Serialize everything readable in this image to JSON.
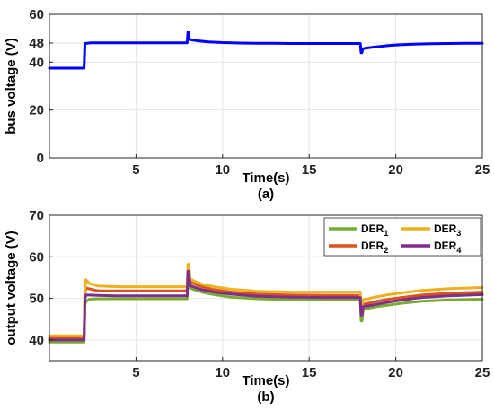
{
  "chart_data": [
    {
      "type": "line",
      "panel_label": "(a)",
      "xlabel": "Time(s)",
      "ylabel": "bus voltage (V)",
      "xlim": [
        0,
        25
      ],
      "ylim": [
        0,
        60
      ],
      "xticks": [
        5,
        10,
        15,
        20,
        25
      ],
      "yticks": [
        0,
        20,
        40,
        48,
        60
      ],
      "grid": true,
      "series": [
        {
          "color": "#0000ff",
          "x": [
            0,
            2.0,
            2.05,
            2.4,
            4,
            6,
            7.95,
            8.0,
            8.05,
            8.08,
            8.15,
            8.3,
            8.6,
            9.2,
            10,
            11,
            12,
            13,
            14,
            15,
            16,
            17,
            17.95,
            18.0,
            18.05,
            18.08,
            18.15,
            18.3,
            18.6,
            19,
            19.5,
            20,
            21,
            22,
            23,
            24,
            25
          ],
          "values": [
            37.5,
            37.5,
            47.8,
            48.1,
            48.1,
            48.1,
            48.1,
            52.5,
            52.5,
            49.5,
            49.4,
            49.2,
            48.9,
            48.5,
            48.2,
            48.0,
            47.9,
            47.9,
            47.8,
            47.8,
            47.8,
            47.8,
            47.8,
            44.0,
            44.0,
            45.6,
            45.7,
            45.9,
            46.2,
            46.5,
            46.9,
            47.2,
            47.5,
            47.7,
            47.8,
            47.9,
            47.9
          ]
        }
      ]
    },
    {
      "type": "line",
      "panel_label": "(b)",
      "xlabel": "Time(s)",
      "ylabel": "output voltage (V)",
      "xlim": [
        0,
        25
      ],
      "ylim": [
        35,
        70
      ],
      "xticks": [
        5,
        10,
        15,
        20,
        25
      ],
      "yticks": [
        40,
        50,
        60,
        70
      ],
      "grid": true,
      "legend_position": "top-right",
      "series": [
        {
          "name": "DER",
          "subscript": "1",
          "color": "#77ac30",
          "x": [
            0,
            2.0,
            2.05,
            2.1,
            2.3,
            2.8,
            4,
            7.95,
            8.0,
            8.05,
            8.12,
            8.3,
            8.8,
            9.5,
            10.5,
            12,
            14,
            16,
            17.95,
            18.0,
            18.05,
            18.12,
            18.4,
            18.9,
            19.6,
            20.5,
            21.5,
            23,
            25
          ],
          "values": [
            39.5,
            39.5,
            48.5,
            49.2,
            49.8,
            49.9,
            49.9,
            49.9,
            53.3,
            53.3,
            52.5,
            52.2,
            51.5,
            50.9,
            50.3,
            49.9,
            49.7,
            49.6,
            49.6,
            44.6,
            44.6,
            47.4,
            47.6,
            48.0,
            48.4,
            48.9,
            49.3,
            49.6,
            49.8
          ]
        },
        {
          "name": "DER",
          "subscript": "2",
          "color": "#d95319",
          "x": [
            0,
            2.0,
            2.05,
            2.1,
            2.3,
            2.8,
            4,
            7.95,
            8.0,
            8.05,
            8.12,
            8.3,
            8.8,
            9.5,
            10.5,
            12,
            14,
            16,
            17.95,
            18.0,
            18.05,
            18.12,
            18.4,
            18.9,
            19.6,
            20.5,
            21.5,
            23,
            25
          ],
          "values": [
            40.4,
            40.4,
            51.0,
            52.5,
            52.3,
            51.8,
            51.8,
            51.8,
            55.8,
            55.8,
            54.0,
            53.6,
            52.8,
            52.1,
            51.5,
            51.0,
            50.8,
            50.7,
            50.7,
            46.5,
            46.5,
            48.6,
            48.8,
            49.3,
            49.8,
            50.3,
            50.8,
            51.2,
            51.5
          ]
        },
        {
          "name": "DER",
          "subscript": "3",
          "color": "#edb120",
          "x": [
            0,
            2.0,
            2.05,
            2.1,
            2.3,
            2.8,
            4,
            7.95,
            8.0,
            8.05,
            8.12,
            8.3,
            8.8,
            9.5,
            10.5,
            12,
            14,
            16,
            17.95,
            18.0,
            18.05,
            18.12,
            18.4,
            18.9,
            19.6,
            20.5,
            21.5,
            23,
            25
          ],
          "values": [
            41.0,
            41.0,
            52.0,
            54.5,
            53.6,
            53.0,
            52.8,
            52.8,
            58.2,
            58.2,
            54.7,
            54.3,
            53.4,
            52.8,
            52.2,
            51.7,
            51.5,
            51.5,
            51.5,
            48.6,
            48.6,
            49.7,
            49.9,
            50.4,
            50.9,
            51.4,
            51.9,
            52.3,
            52.6
          ]
        },
        {
          "name": "DER",
          "subscript": "4",
          "color": "#7e2f8e",
          "x": [
            0,
            2.0,
            2.05,
            2.1,
            2.3,
            2.8,
            4,
            7.95,
            8.0,
            8.05,
            8.12,
            8.3,
            8.8,
            9.5,
            10.5,
            12,
            14,
            16,
            17.95,
            18.0,
            18.05,
            18.12,
            18.4,
            18.9,
            19.6,
            20.5,
            21.5,
            23,
            25
          ],
          "values": [
            40.0,
            40.0,
            49.8,
            50.8,
            50.8,
            50.7,
            50.6,
            50.6,
            56.5,
            56.5,
            53.1,
            52.8,
            52.1,
            51.5,
            51.0,
            50.5,
            50.3,
            50.2,
            50.2,
            46.0,
            46.0,
            48.0,
            48.2,
            48.6,
            49.1,
            49.7,
            50.2,
            50.6,
            50.9
          ]
        }
      ]
    }
  ]
}
